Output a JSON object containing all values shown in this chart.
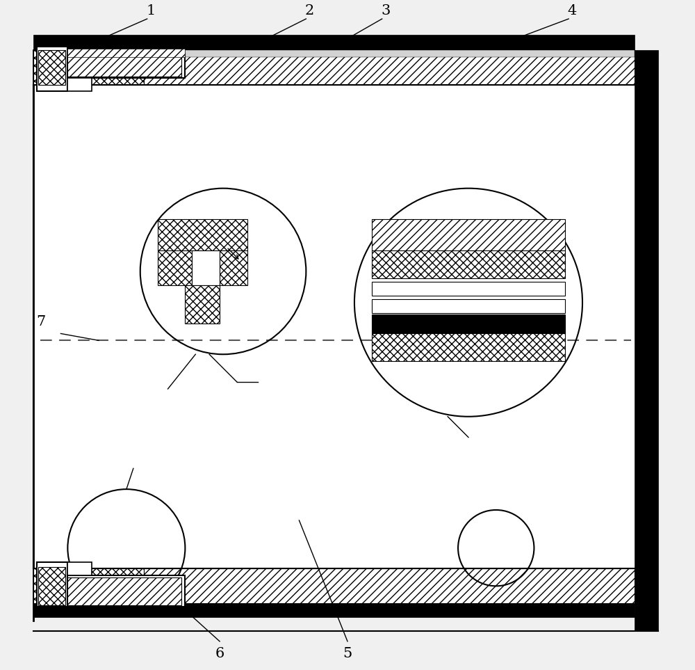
{
  "bg_color": "#f0f0f0",
  "lc": "#000000",
  "dash_color": "#555555",
  "label_1": "1",
  "label_2": "2",
  "label_3": "3",
  "label_4": "4",
  "label_5": "5",
  "label_6": "6",
  "label_7": "7",
  "font_size": 15,
  "fig_w": 10.0,
  "fig_h": 9.63,
  "dpi": 100,
  "xlim": [
    0,
    100
  ],
  "ylim": [
    0,
    96.3
  ]
}
